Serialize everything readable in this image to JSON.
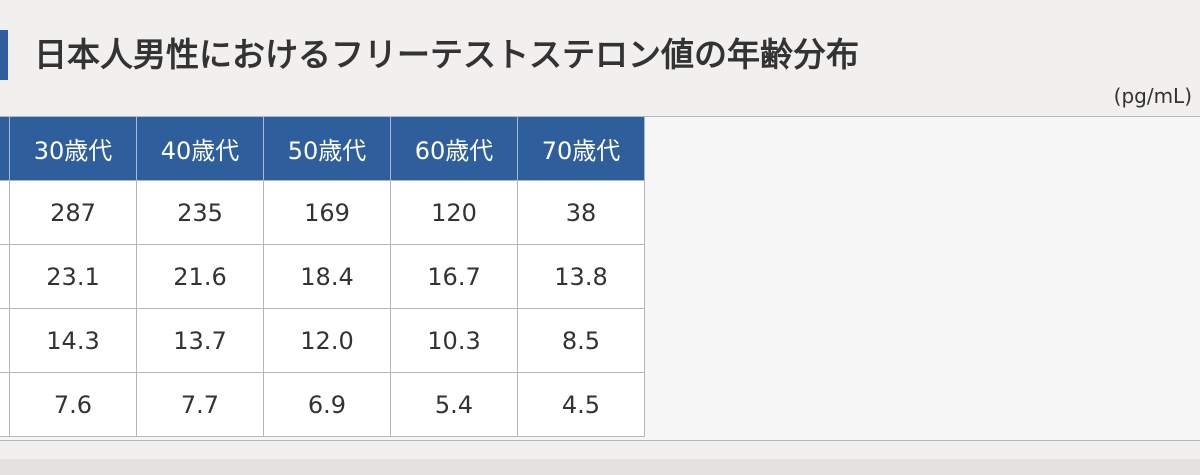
{
  "title": "日本人男性におけるフリーテストステロン値の年齢分布",
  "unit": "(pg/mL)",
  "table": {
    "headers": [
      "30歳代",
      "40歳代",
      "50歳代",
      "60歳代",
      "70歳代"
    ],
    "rows": [
      [
        "287",
        "235",
        "169",
        "120",
        "38"
      ],
      [
        "23.1",
        "21.6",
        "18.4",
        "16.7",
        "13.8"
      ],
      [
        "14.3",
        "13.7",
        "12.0",
        "10.3",
        "8.5"
      ],
      [
        "7.6",
        "7.7",
        "6.9",
        "5.4",
        "4.5"
      ]
    ]
  },
  "colors": {
    "header_bg": "#2f5e9c",
    "accent_bar": "#2f5e9c",
    "page_bg": "#f1f0ee"
  }
}
